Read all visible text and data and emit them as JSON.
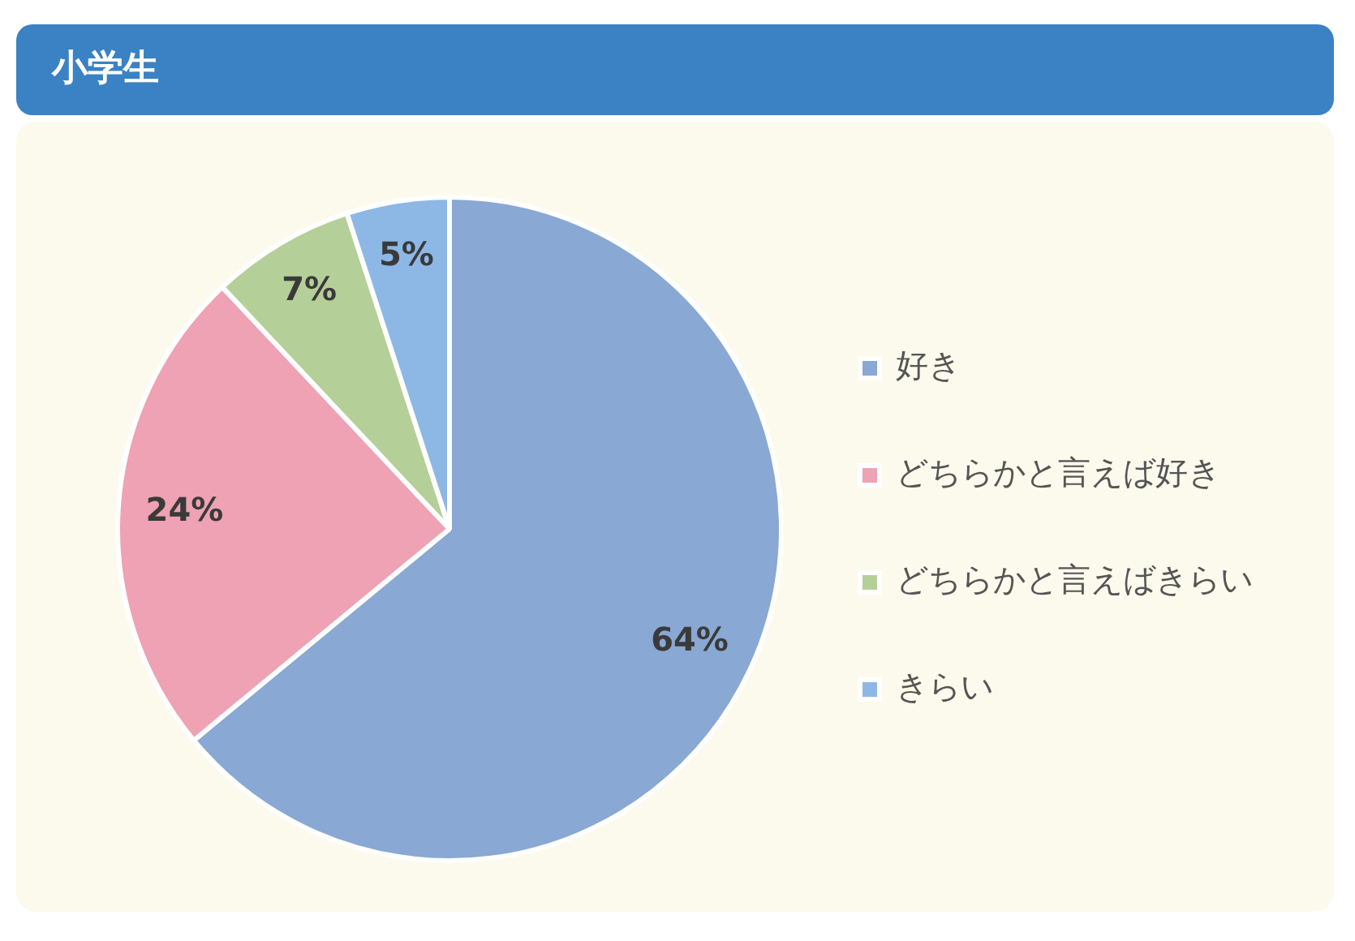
{
  "chart_data": {
    "type": "pie",
    "title": "小学生",
    "categories": [
      "好き",
      "どちらかと言えば好き",
      "どちらかと言えばきらい",
      "きらい"
    ],
    "values": [
      64,
      24,
      7,
      5
    ],
    "colors": [
      "#89a8d3",
      "#eea2b3",
      "#b4cf98",
      "#8db8e6"
    ],
    "value_labels": [
      "64%",
      "24%",
      "7%",
      "5%"
    ],
    "legend": "right"
  }
}
